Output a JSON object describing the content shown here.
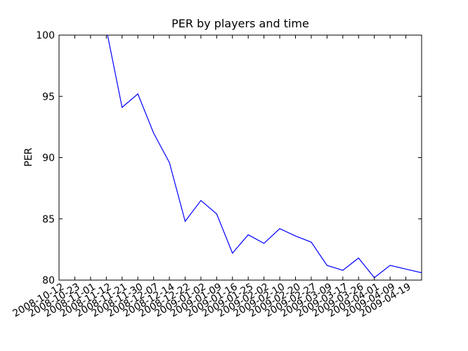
{
  "chart_data": {
    "type": "line",
    "title": "PER by players and time",
    "y_label": "PER",
    "categories": [
      "2008-10-12",
      "2008-10-23",
      "2008-11-01",
      "2008-11-12",
      "2008-11-21",
      "2008-11-30",
      "2008-12-07",
      "2008-12-14",
      "2008-12-22",
      "2009-01-02",
      "2009-01-09",
      "2009-01-16",
      "2009-01-25",
      "2009-02-02",
      "2009-02-10",
      "2009-02-20",
      "2009-02-27",
      "2009-03-09",
      "2009-03-17",
      "2009-03-26",
      "2009-04-01",
      "2009-04-09",
      "2009-04-19",
      null
    ],
    "series": [
      {
        "color": "#0000ff",
        "values": [
          null,
          null,
          null,
          100.5,
          94.1,
          95.2,
          92.0,
          89.6,
          84.8,
          86.5,
          85.4,
          82.2,
          83.7,
          83.0,
          84.2,
          83.6,
          83.1,
          81.2,
          80.8,
          81.8,
          80.2,
          81.2,
          80.9,
          80.6
        ]
      }
    ],
    "ylim": [
      80,
      100
    ],
    "yticks": [
      80,
      85,
      90,
      95,
      100
    ]
  }
}
